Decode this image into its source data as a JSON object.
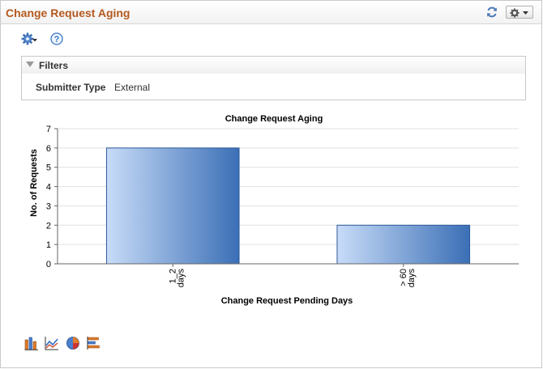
{
  "header": {
    "title": "Change Request Aging",
    "refresh_icon": "refresh-icon",
    "options_icon": "gear-icon"
  },
  "toolbar": {
    "settings_icon": "gear-icon",
    "help_icon": "help-icon"
  },
  "filters": {
    "title": "Filters",
    "items": [
      {
        "label": "Submitter Type",
        "value": "External"
      }
    ]
  },
  "chart_data": {
    "type": "bar",
    "title": "Change Request Aging",
    "xlabel": "Change Request Pending Days",
    "ylabel": "No. of Requests",
    "categories": [
      "1_2 days",
      "> 60 days"
    ],
    "tick_labels": [
      {
        "line1": "1_2",
        "line2": "days"
      },
      {
        "line1": "> 60",
        "line2": "days"
      }
    ],
    "values": [
      6,
      2
    ],
    "ylim": [
      0,
      7
    ],
    "yticks": [
      0,
      1,
      2,
      3,
      4,
      5,
      6,
      7
    ],
    "grid": true,
    "colors": {
      "bar_light": "#c8dcf8",
      "bar_dark": "#3b6fb6",
      "bar_border": "#2d5a9a",
      "grid": "#e0e0e0"
    }
  },
  "chart_type_icons": [
    "bar-chart-icon",
    "line-chart-icon",
    "pie-chart-icon",
    "horizontal-bar-chart-icon"
  ],
  "colors": {
    "title": "#b4591e",
    "accent": "#2f6fc2"
  }
}
